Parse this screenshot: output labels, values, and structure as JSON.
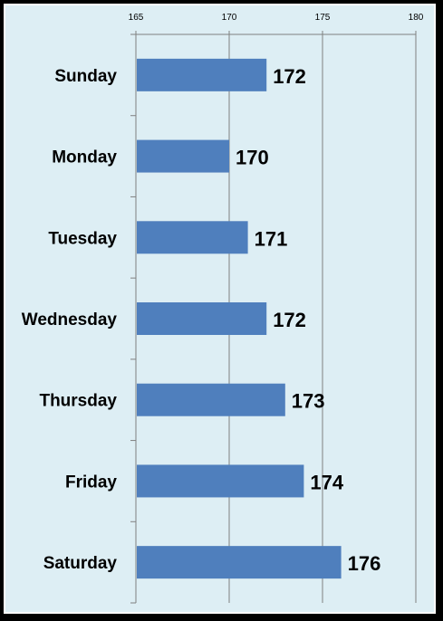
{
  "chart_data": {
    "type": "bar",
    "orientation": "horizontal",
    "categories": [
      "Sunday",
      "Monday",
      "Tuesday",
      "Wednesday",
      "Thursday",
      "Friday",
      "Saturday"
    ],
    "values": [
      172,
      170,
      171,
      172,
      173,
      174,
      176
    ],
    "data_labels": [
      "172",
      "170",
      "171",
      "172",
      "173",
      "174",
      "176"
    ],
    "xlim": [
      165,
      180
    ],
    "xticks": [
      165,
      170,
      175,
      180
    ],
    "xtick_labels": [
      "165",
      "170",
      "175",
      "180"
    ],
    "title": "",
    "xlabel": "",
    "ylabel": "",
    "grid": true,
    "legend": "none",
    "colors": {
      "bar": "#4f7fbd",
      "background": "#ddeef4",
      "gridline": "#808080",
      "frame": "#000000"
    }
  }
}
